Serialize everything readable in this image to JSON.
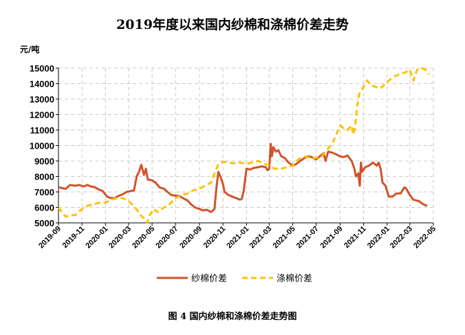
{
  "chart_data": {
    "type": "line",
    "title": "2019年度以来国内纱棉和涤棉价差走势",
    "ylabel": "元/吨",
    "ylim": [
      5000,
      15000
    ],
    "yticks": [
      "5000",
      "6000",
      "7000",
      "8000",
      "9000",
      "10000",
      "11000",
      "12000",
      "13000",
      "14000",
      "15000"
    ],
    "xlim": [
      "2019-09",
      "2022-05"
    ],
    "xticks": [
      "2019-09",
      "2019-11",
      "2020-01",
      "2020-03",
      "2020-05",
      "2020-07",
      "2020-09",
      "2020-11",
      "2021-01",
      "2021-03",
      "2021-05",
      "2021-07",
      "2021-09",
      "2021-11",
      "2022-01",
      "2022-03",
      "2022-05"
    ],
    "grid": true,
    "legend_position": "bottom",
    "caption": "图 4    国内纱棉和涤棉价差走势图",
    "series": [
      {
        "name": "纱棉价差",
        "color": "#d2522a",
        "style": "solid",
        "points": [
          [
            "2019-09-01",
            7300
          ],
          [
            "2019-09-10",
            7250
          ],
          [
            "2019-09-20",
            7200
          ],
          [
            "2019-10-01",
            7450
          ],
          [
            "2019-10-15",
            7400
          ],
          [
            "2019-10-25",
            7450
          ],
          [
            "2019-11-05",
            7350
          ],
          [
            "2019-11-15",
            7450
          ],
          [
            "2019-11-25",
            7350
          ],
          [
            "2019-12-05",
            7300
          ],
          [
            "2019-12-15",
            7150
          ],
          [
            "2019-12-25",
            7050
          ],
          [
            "2020-01-05",
            6700
          ],
          [
            "2020-01-15",
            6600
          ],
          [
            "2020-01-25",
            6600
          ],
          [
            "2020-02-05",
            6750
          ],
          [
            "2020-02-15",
            6850
          ],
          [
            "2020-02-25",
            7000
          ],
          [
            "2020-03-05",
            7050
          ],
          [
            "2020-03-15",
            7100
          ],
          [
            "2020-03-22",
            8000
          ],
          [
            "2020-03-28",
            8300
          ],
          [
            "2020-04-03",
            8750
          ],
          [
            "2020-04-10",
            8100
          ],
          [
            "2020-04-15",
            8500
          ],
          [
            "2020-04-20",
            7800
          ],
          [
            "2020-05-01",
            7750
          ],
          [
            "2020-05-10",
            7600
          ],
          [
            "2020-05-20",
            7300
          ],
          [
            "2020-06-01",
            7200
          ],
          [
            "2020-06-10",
            7000
          ],
          [
            "2020-06-20",
            6800
          ],
          [
            "2020-07-01",
            6750
          ],
          [
            "2020-07-10",
            6750
          ],
          [
            "2020-07-20",
            6600
          ],
          [
            "2020-08-01",
            6450
          ],
          [
            "2020-08-10",
            6200
          ],
          [
            "2020-08-20",
            6000
          ],
          [
            "2020-09-01",
            5900
          ],
          [
            "2020-09-10",
            5800
          ],
          [
            "2020-09-20",
            5850
          ],
          [
            "2020-10-01",
            5700
          ],
          [
            "2020-10-10",
            5900
          ],
          [
            "2020-10-15",
            7300
          ],
          [
            "2020-10-20",
            8300
          ],
          [
            "2020-10-25",
            8000
          ],
          [
            "2020-11-01",
            7500
          ],
          [
            "2020-11-05",
            7000
          ],
          [
            "2020-11-15",
            6800
          ],
          [
            "2020-11-25",
            6700
          ],
          [
            "2020-12-05",
            6600
          ],
          [
            "2020-12-15",
            6500
          ],
          [
            "2020-12-20",
            6550
          ],
          [
            "2020-12-25",
            7100
          ],
          [
            "2021-01-01",
            8500
          ],
          [
            "2021-01-10",
            8450
          ],
          [
            "2021-01-20",
            8550
          ],
          [
            "2021-02-01",
            8600
          ],
          [
            "2021-02-10",
            8650
          ],
          [
            "2021-02-20",
            8600
          ],
          [
            "2021-02-25",
            8400
          ],
          [
            "2021-03-01",
            8500
          ],
          [
            "2021-03-05",
            10100
          ],
          [
            "2021-03-08",
            9300
          ],
          [
            "2021-03-12",
            9900
          ],
          [
            "2021-03-18",
            9600
          ],
          [
            "2021-03-25",
            9700
          ],
          [
            "2021-04-01",
            9300
          ],
          [
            "2021-04-10",
            9200
          ],
          [
            "2021-04-20",
            8900
          ],
          [
            "2021-05-01",
            8700
          ],
          [
            "2021-05-10",
            8800
          ],
          [
            "2021-05-20",
            9000
          ],
          [
            "2021-06-01",
            9200
          ],
          [
            "2021-06-10",
            9300
          ],
          [
            "2021-06-20",
            9250
          ],
          [
            "2021-07-01",
            9100
          ],
          [
            "2021-07-10",
            9300
          ],
          [
            "2021-07-20",
            9500
          ],
          [
            "2021-07-25",
            9000
          ],
          [
            "2021-08-01",
            9600
          ],
          [
            "2021-08-10",
            9550
          ],
          [
            "2021-08-20",
            9450
          ],
          [
            "2021-09-01",
            9300
          ],
          [
            "2021-09-10",
            9250
          ],
          [
            "2021-09-20",
            9350
          ],
          [
            "2021-10-01",
            9000
          ],
          [
            "2021-10-08",
            8500
          ],
          [
            "2021-10-12",
            8000
          ],
          [
            "2021-10-18",
            8200
          ],
          [
            "2021-10-22",
            7400
          ],
          [
            "2021-10-25",
            8900
          ],
          [
            "2021-10-28",
            8300
          ],
          [
            "2021-11-05",
            8600
          ],
          [
            "2021-11-15",
            8700
          ],
          [
            "2021-11-25",
            8900
          ],
          [
            "2021-12-05",
            8700
          ],
          [
            "2021-12-10",
            8900
          ],
          [
            "2021-12-15",
            8500
          ],
          [
            "2021-12-20",
            7600
          ],
          [
            "2021-12-28",
            7400
          ],
          [
            "2022-01-05",
            6700
          ],
          [
            "2022-01-15",
            6700
          ],
          [
            "2022-01-25",
            6900
          ],
          [
            "2022-02-05",
            6900
          ],
          [
            "2022-02-15",
            7300
          ],
          [
            "2022-02-20",
            7200
          ],
          [
            "2022-03-01",
            6800
          ],
          [
            "2022-03-10",
            6500
          ],
          [
            "2022-03-25",
            6400
          ],
          [
            "2022-04-05",
            6200
          ],
          [
            "2022-04-15",
            6100
          ]
        ]
      },
      {
        "name": "涤棉价差",
        "color": "#ffc000",
        "style": "dashed",
        "points": [
          [
            "2019-09-01",
            6000
          ],
          [
            "2019-09-10",
            5700
          ],
          [
            "2019-09-20",
            5400
          ],
          [
            "2019-10-01",
            5500
          ],
          [
            "2019-10-15",
            5500
          ],
          [
            "2019-11-01",
            5900
          ],
          [
            "2019-11-15",
            6100
          ],
          [
            "2019-12-01",
            6200
          ],
          [
            "2019-12-15",
            6300
          ],
          [
            "2020-01-01",
            6300
          ],
          [
            "2020-01-15",
            6500
          ],
          [
            "2020-02-01",
            6600
          ],
          [
            "2020-02-15",
            6600
          ],
          [
            "2020-03-01",
            6400
          ],
          [
            "2020-03-15",
            6100
          ],
          [
            "2020-04-01",
            5500
          ],
          [
            "2020-04-10",
            5300
          ],
          [
            "2020-04-18",
            5000
          ],
          [
            "2020-04-25",
            5500
          ],
          [
            "2020-05-05",
            5900
          ],
          [
            "2020-05-15",
            5700
          ],
          [
            "2020-06-01",
            6000
          ],
          [
            "2020-06-15",
            6200
          ],
          [
            "2020-07-01",
            6600
          ],
          [
            "2020-07-15",
            6800
          ],
          [
            "2020-08-01",
            6900
          ],
          [
            "2020-08-15",
            7100
          ],
          [
            "2020-09-01",
            7200
          ],
          [
            "2020-09-15",
            7400
          ],
          [
            "2020-10-01",
            7600
          ],
          [
            "2020-10-10",
            8200
          ],
          [
            "2020-10-20",
            8800
          ],
          [
            "2020-11-01",
            8950
          ],
          [
            "2020-11-15",
            8900
          ],
          [
            "2020-12-01",
            8850
          ],
          [
            "2020-12-15",
            8900
          ],
          [
            "2021-01-01",
            8800
          ],
          [
            "2021-01-15",
            8900
          ],
          [
            "2021-02-01",
            9000
          ],
          [
            "2021-02-15",
            8850
          ],
          [
            "2021-03-01",
            8700
          ],
          [
            "2021-03-15",
            8500
          ],
          [
            "2021-04-01",
            8500
          ],
          [
            "2021-04-15",
            8600
          ],
          [
            "2021-05-01",
            8700
          ],
          [
            "2021-05-15",
            9100
          ],
          [
            "2021-06-01",
            9300
          ],
          [
            "2021-06-15",
            9200
          ],
          [
            "2021-07-01",
            9200
          ],
          [
            "2021-07-15",
            9300
          ],
          [
            "2021-08-01",
            9800
          ],
          [
            "2021-08-15",
            10300
          ],
          [
            "2021-09-01",
            11300
          ],
          [
            "2021-09-10",
            11100
          ],
          [
            "2021-09-20",
            11000
          ],
          [
            "2021-10-01",
            11300
          ],
          [
            "2021-10-05",
            10700
          ],
          [
            "2021-10-10",
            11200
          ],
          [
            "2021-10-15",
            12500
          ],
          [
            "2021-10-20",
            13300
          ],
          [
            "2021-11-01",
            13800
          ],
          [
            "2021-11-10",
            14200
          ],
          [
            "2021-11-20",
            13900
          ],
          [
            "2021-12-01",
            13800
          ],
          [
            "2021-12-15",
            13700
          ],
          [
            "2022-01-01",
            14100
          ],
          [
            "2022-01-15",
            14400
          ],
          [
            "2022-02-01",
            14600
          ],
          [
            "2022-02-15",
            14700
          ],
          [
            "2022-03-01",
            14900
          ],
          [
            "2022-03-10",
            14200
          ],
          [
            "2022-03-20",
            14900
          ],
          [
            "2022-04-01",
            15000
          ],
          [
            "2022-04-10",
            14900
          ],
          [
            "2022-04-20",
            14600
          ]
        ]
      }
    ]
  }
}
